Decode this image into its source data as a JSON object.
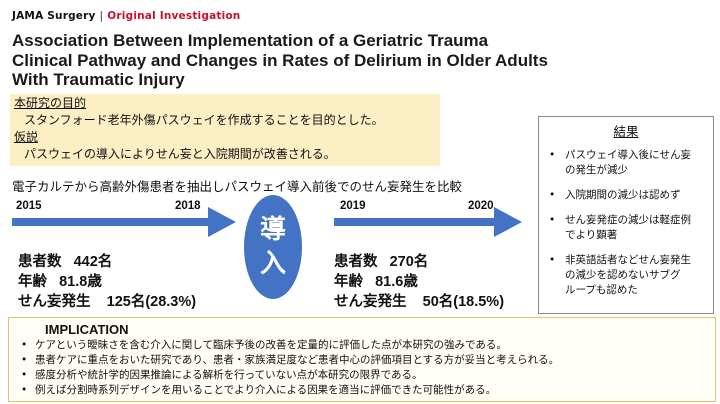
{
  "journal": {
    "name": "JAMA Surgery",
    "separator": "|",
    "type": "Original Investigation"
  },
  "title_lines": [
    "Association Between Implementation of a Geriatric Trauma",
    "Clinical Pathway and Changes in Rates of Delirium in Older Adults",
    "With Traumatic Injury"
  ],
  "purpose": {
    "heading": "本研究の目的",
    "text": "スタンフォード老年外傷パスウェイを作成することを目的とした。",
    "hypothesis_heading": "仮説",
    "hypothesis_text": "パスウェイの導入によりせん妄と入院期間が改善される。"
  },
  "description": "電子カルテから高齢外傷患者を抽出しパスウェイ導入前後でのせん妄発生を比較",
  "colors": {
    "accent": "#4472c4",
    "highlight": "#fcefc4",
    "title_red": "#c8102e"
  },
  "pre": {
    "year_start": "2015",
    "year_end": "2018",
    "patients_label": "患者数",
    "patients_value": "442名",
    "age_label": "年齢",
    "age_value": "81.8歳",
    "delirium_label": "せん妄発生",
    "delirium_value": "125名(28.3%)"
  },
  "intervention": {
    "char1": "導",
    "char2": "入"
  },
  "post": {
    "year_start": "2019",
    "year_end": "2020",
    "patients_label": "患者数",
    "patients_value": "270名",
    "age_label": "年齢",
    "age_value": "81.6歳",
    "delirium_label": "せん妄発生",
    "delirium_value": "50名(18.5%)"
  },
  "results": {
    "heading": "結果",
    "bullet": "•",
    "items": [
      [
        "パスウェイ導入後にせん妄",
        "の発生が減少"
      ],
      [
        "入院期間の減少は認めず"
      ],
      [
        "せん妄発症の減少は軽症例",
        "でより顕著"
      ],
      [
        "非英語話者などせん妄発生",
        "の減少を認めないサブグ",
        "ループも認めた"
      ]
    ]
  },
  "implication": {
    "heading": "IMPLICATION",
    "bullet": "•",
    "items": [
      "ケアという曖昧さを含む介入に関して臨床予後の改善を定量的に評価した点が本研究の強みである。",
      "患者ケアに重点をおいた研究であり、患者・家族満足度など患者中心の評価項目とする方が妥当と考えられる。",
      "感度分析や統計学的因果推論による解析を行っていない点が本研究の限界である。",
      "例えば分割時系列デザインを用いることでより介入による因果を適当に評価できた可能性がある。"
    ]
  }
}
